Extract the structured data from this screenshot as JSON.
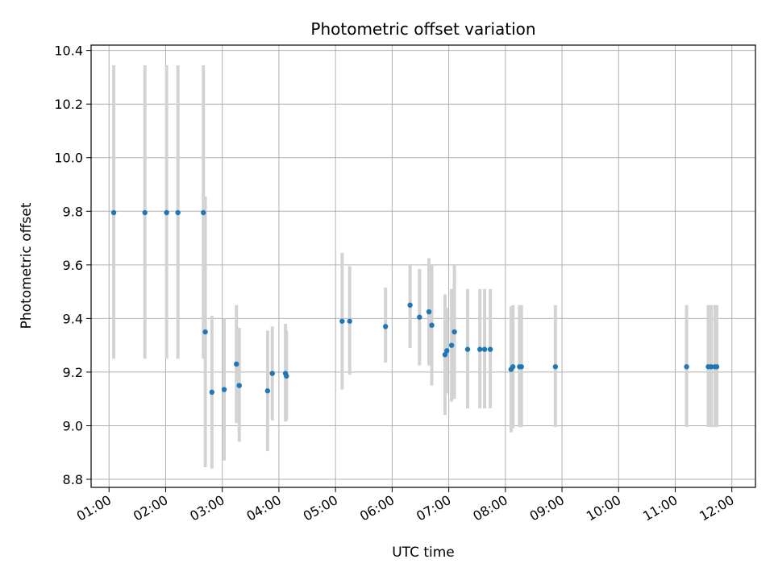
{
  "chart_data": {
    "type": "scatter",
    "title": "Photometric offset variation",
    "xlabel": "UTC time",
    "ylabel": "Photometric offset",
    "x_unit": "UTC time (HH:MM)",
    "xlim": [
      "00:41",
      "12:25"
    ],
    "ylim": [
      8.77,
      10.42
    ],
    "grid": true,
    "x_ticks": [
      "01:00",
      "02:00",
      "03:00",
      "04:00",
      "05:00",
      "06:00",
      "07:00",
      "08:00",
      "09:00",
      "10:00",
      "11:00",
      "12:00"
    ],
    "y_ticks": [
      8.8,
      9.0,
      9.2,
      9.4,
      9.6,
      9.8,
      10.0,
      10.2,
      10.4
    ],
    "y_tick_labels": [
      "8.8",
      "9.0",
      "9.2",
      "9.4",
      "9.6",
      "9.8",
      "10.0",
      "10.2",
      "10.4"
    ],
    "marker_color": "#1f77b4",
    "errorbar_color": "#d3d3d3",
    "points": [
      {
        "x": "01:05",
        "y": 9.795,
        "lo": 9.25,
        "hi": 10.345
      },
      {
        "x": "01:38",
        "y": 9.795,
        "lo": 9.25,
        "hi": 10.345
      },
      {
        "x": "02:01",
        "y": 9.795,
        "lo": 9.25,
        "hi": 10.345
      },
      {
        "x": "02:13",
        "y": 9.795,
        "lo": 9.25,
        "hi": 10.345
      },
      {
        "x": "02:40",
        "y": 9.795,
        "lo": 9.25,
        "hi": 10.345
      },
      {
        "x": "02:42",
        "y": 9.35,
        "lo": 8.845,
        "hi": 9.855
      },
      {
        "x": "02:49",
        "y": 9.125,
        "lo": 8.84,
        "hi": 9.41
      },
      {
        "x": "03:02",
        "y": 9.135,
        "lo": 8.87,
        "hi": 9.4
      },
      {
        "x": "03:15",
        "y": 9.23,
        "lo": 9.01,
        "hi": 9.45
      },
      {
        "x": "03:18",
        "y": 9.15,
        "lo": 8.94,
        "hi": 9.365
      },
      {
        "x": "03:48",
        "y": 9.13,
        "lo": 8.905,
        "hi": 9.355
      },
      {
        "x": "03:53",
        "y": 9.195,
        "lo": 9.02,
        "hi": 9.37
      },
      {
        "x": "04:07",
        "y": 9.195,
        "lo": 9.015,
        "hi": 9.38
      },
      {
        "x": "04:08",
        "y": 9.185,
        "lo": 9.02,
        "hi": 9.355
      },
      {
        "x": "05:07",
        "y": 9.39,
        "lo": 9.135,
        "hi": 9.645
      },
      {
        "x": "05:15",
        "y": 9.39,
        "lo": 9.19,
        "hi": 9.595
      },
      {
        "x": "05:53",
        "y": 9.37,
        "lo": 9.235,
        "hi": 9.515
      },
      {
        "x": "06:19",
        "y": 9.45,
        "lo": 9.29,
        "hi": 9.6
      },
      {
        "x": "06:29",
        "y": 9.405,
        "lo": 9.225,
        "hi": 9.585
      },
      {
        "x": "06:39",
        "y": 9.425,
        "lo": 9.225,
        "hi": 9.625
      },
      {
        "x": "06:42",
        "y": 9.375,
        "lo": 9.15,
        "hi": 9.6
      },
      {
        "x": "06:56",
        "y": 9.265,
        "lo": 9.04,
        "hi": 9.49
      },
      {
        "x": "06:58",
        "y": 9.28,
        "lo": 9.12,
        "hi": 9.44
      },
      {
        "x": "07:03",
        "y": 9.3,
        "lo": 9.09,
        "hi": 9.51
      },
      {
        "x": "07:06",
        "y": 9.35,
        "lo": 9.1,
        "hi": 9.6
      },
      {
        "x": "07:20",
        "y": 9.285,
        "lo": 9.065,
        "hi": 9.51
      },
      {
        "x": "07:33",
        "y": 9.285,
        "lo": 9.065,
        "hi": 9.51
      },
      {
        "x": "07:38",
        "y": 9.285,
        "lo": 9.065,
        "hi": 9.51
      },
      {
        "x": "07:44",
        "y": 9.285,
        "lo": 9.065,
        "hi": 9.51
      },
      {
        "x": "08:06",
        "y": 9.21,
        "lo": 8.975,
        "hi": 9.445
      },
      {
        "x": "08:08",
        "y": 9.22,
        "lo": 8.99,
        "hi": 9.45
      },
      {
        "x": "08:15",
        "y": 9.22,
        "lo": 8.995,
        "hi": 9.45
      },
      {
        "x": "08:17",
        "y": 9.22,
        "lo": 8.995,
        "hi": 9.45
      },
      {
        "x": "08:53",
        "y": 9.22,
        "lo": 8.995,
        "hi": 9.45
      },
      {
        "x": "11:12",
        "y": 9.22,
        "lo": 8.995,
        "hi": 9.45
      },
      {
        "x": "11:35",
        "y": 9.22,
        "lo": 8.995,
        "hi": 9.45
      },
      {
        "x": "11:38",
        "y": 9.22,
        "lo": 8.995,
        "hi": 9.45
      },
      {
        "x": "11:42",
        "y": 9.22,
        "lo": 8.995,
        "hi": 9.45
      },
      {
        "x": "11:44",
        "y": 9.22,
        "lo": 8.995,
        "hi": 9.45
      }
    ]
  }
}
